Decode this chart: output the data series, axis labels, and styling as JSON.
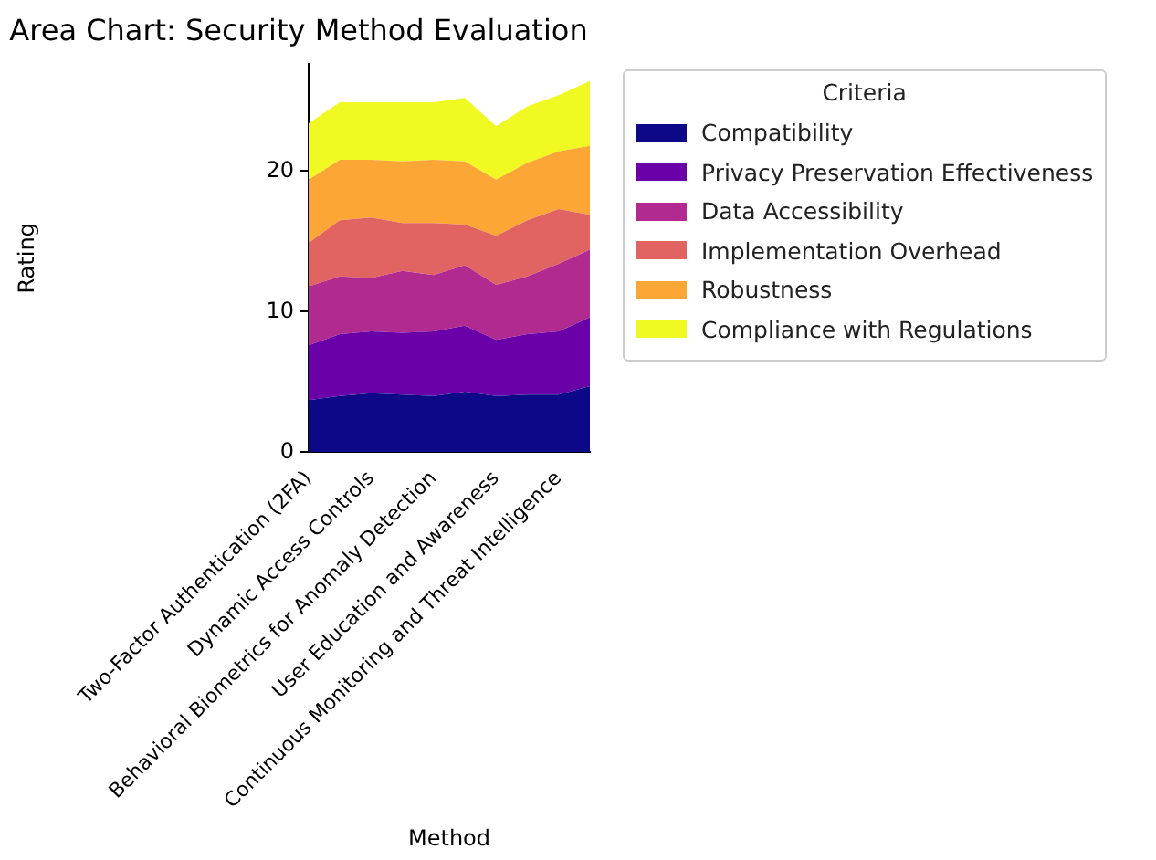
{
  "chart_data": {
    "type": "area",
    "title": "Area Chart: Security Method Evaluation",
    "xlabel": "Method",
    "ylabel": "Rating",
    "legend_title": "Criteria",
    "categories": [
      "Two-Factor Authentication (2FA)",
      null,
      "Dynamic Access Controls",
      null,
      "Behavioral Biometrics for Anomaly Detection",
      null,
      "User Education and Awareness",
      null,
      "Continuous Monitoring and Threat Intelligence",
      null
    ],
    "stacked": true,
    "ylim": [
      0,
      27.6
    ],
    "yticks": [
      0,
      10,
      20
    ],
    "grid": false,
    "legend": "right",
    "series": [
      {
        "name": "Compatibility",
        "color": "#0d0887",
        "values": [
          3.7,
          4.0,
          4.2,
          4.1,
          4.0,
          4.3,
          4.0,
          4.1,
          4.1,
          4.7
        ]
      },
      {
        "name": "Privacy Preservation Effectiveness",
        "color": "#6a00a8",
        "values": [
          3.9,
          4.4,
          4.4,
          4.4,
          4.6,
          4.7,
          4.0,
          4.3,
          4.5,
          4.9
        ]
      },
      {
        "name": "Data Accessibility",
        "color": "#b12a90",
        "values": [
          4.2,
          4.1,
          3.8,
          4.4,
          4.0,
          4.3,
          3.9,
          4.1,
          4.8,
          4.8
        ]
      },
      {
        "name": "Implementation Overhead",
        "color": "#e16462",
        "values": [
          3.1,
          4.0,
          4.3,
          3.4,
          3.7,
          2.9,
          3.5,
          4.0,
          3.9,
          2.5
        ]
      },
      {
        "name": "Robustness",
        "color": "#fca636",
        "values": [
          4.5,
          4.3,
          4.1,
          4.4,
          4.5,
          4.5,
          4.0,
          4.1,
          4.1,
          4.9
        ]
      },
      {
        "name": "Compliance with Regulations",
        "color": "#f0f921",
        "values": [
          4.0,
          4.1,
          4.1,
          4.2,
          4.1,
          4.5,
          3.8,
          4.0,
          4.0,
          4.6
        ]
      }
    ]
  }
}
